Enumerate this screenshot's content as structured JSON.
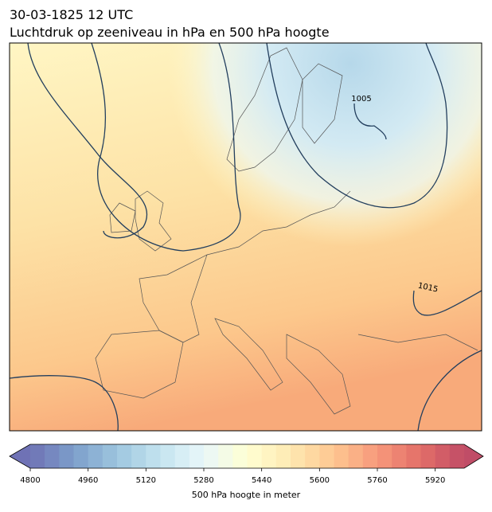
{
  "header": {
    "title_line1": "30-03-1825 12 UTC",
    "title_line2": "Luchtdruk op zeeniveau in hPa en 500 hPa hoogte"
  },
  "map": {
    "contour_labels": [
      "1005",
      "1015"
    ]
  },
  "colorbar": {
    "label": "500 hPa hoogte in meter",
    "range": [
      4800,
      6000
    ],
    "step": 40,
    "ticks": [
      4800,
      4960,
      5120,
      5280,
      5440,
      5600,
      5760,
      5920
    ]
  }
}
